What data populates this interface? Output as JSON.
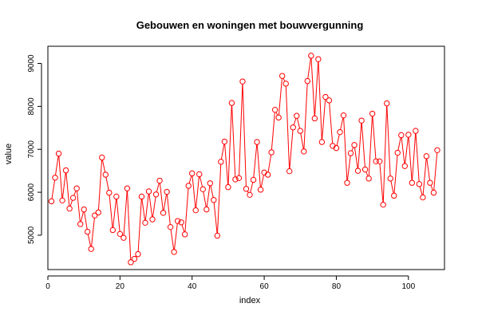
{
  "chart_data": {
    "type": "line",
    "title": "Gebouwen en woningen met bouwvergunning",
    "xlabel": "index",
    "ylabel": "value",
    "xlim": [
      0,
      110
    ],
    "ylim": [
      4200,
      9400
    ],
    "xticks": [
      0,
      20,
      40,
      60,
      80,
      100
    ],
    "yticks": [
      5000,
      6000,
      7000,
      8000,
      9000
    ],
    "series_color": "#ff0000",
    "markers": "open-circle",
    "x": [
      1,
      2,
      3,
      4,
      5,
      6,
      7,
      8,
      9,
      10,
      11,
      12,
      13,
      14,
      15,
      16,
      17,
      18,
      19,
      20,
      21,
      22,
      23,
      24,
      25,
      26,
      27,
      28,
      29,
      30,
      31,
      32,
      33,
      34,
      35,
      36,
      37,
      38,
      39,
      40,
      41,
      42,
      43,
      44,
      45,
      46,
      47,
      48,
      49,
      50,
      51,
      52,
      53,
      54,
      55,
      56,
      57,
      58,
      59,
      60,
      61,
      62,
      63,
      64,
      65,
      66,
      67,
      68,
      69,
      70,
      71,
      72,
      73,
      74,
      75,
      76,
      77,
      78,
      79,
      80,
      81,
      82,
      83,
      84,
      85,
      86,
      87,
      88,
      89,
      90,
      91,
      92,
      93,
      94,
      95,
      96,
      97,
      98,
      99,
      100,
      101,
      102,
      103,
      104,
      105,
      106,
      107,
      108
    ],
    "values": [
      5790,
      6340,
      6900,
      5810,
      6510,
      5620,
      5870,
      6090,
      5260,
      5600,
      5080,
      4680,
      5460,
      5530,
      6810,
      6410,
      5990,
      5120,
      5900,
      5030,
      4940,
      6090,
      4370,
      4450,
      4560,
      5900,
      5290,
      6020,
      5370,
      5950,
      6270,
      5520,
      6010,
      5190,
      4610,
      5330,
      5300,
      5020,
      6150,
      6440,
      5580,
      6420,
      6070,
      5600,
      6210,
      5820,
      4990,
      6710,
      7180,
      6120,
      8080,
      6300,
      6330,
      8580,
      6080,
      5940,
      6290,
      7170,
      6060,
      6460,
      6410,
      6930,
      7920,
      7740,
      8710,
      8530,
      6490,
      7510,
      7780,
      7430,
      6950,
      8590,
      9180,
      7720,
      9100,
      7170,
      8220,
      8140,
      7080,
      7030,
      7400,
      7790,
      6220,
      6910,
      7100,
      6500,
      7670,
      6530,
      6320,
      7830,
      6720,
      6720,
      5710,
      8070,
      6320,
      5920,
      6920,
      7330,
      6610,
      7340,
      6220,
      7430,
      6190,
      5880,
      6840,
      6220,
      5990,
      6980
    ]
  }
}
